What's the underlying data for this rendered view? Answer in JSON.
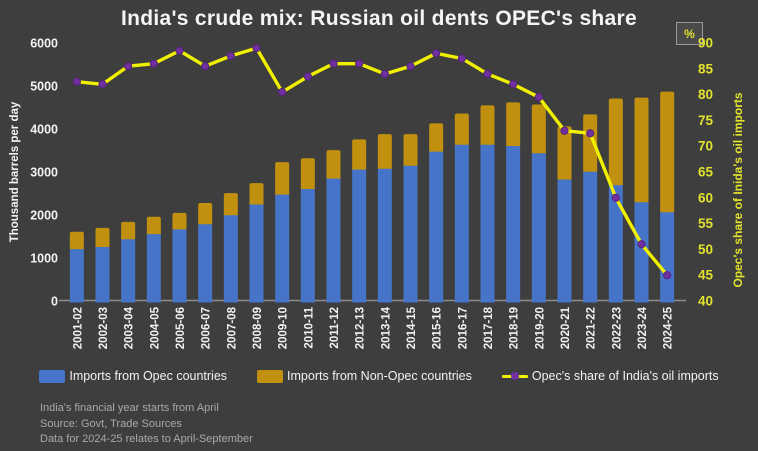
{
  "colors": {
    "background": "#3E3E3E",
    "axis_text": "#F2F2F2",
    "right_axis_text": "#E2E22E",
    "axis_line": "#8C8C8C",
    "footnote_text": "#A9A9A9",
    "opec_bar": "#4574C8",
    "non_opec_bar": "#C0900E",
    "share_line": "#F0F000",
    "share_marker": "#7030A0"
  },
  "footnotes": {
    "line1": "India's financial year starts from April",
    "line2": "Source: Govt, Trade Sources",
    "line3": "Data for 2024-25 relates to April-September"
  },
  "chart_data": {
    "type": "combo",
    "title": "India's crude mix: Russian oil dents OPEC's share",
    "ylabel_left": "Thousand barrels per day",
    "ylabel_right": "Opec's share of Inida's oil imports",
    "right_unit": "%",
    "xlabel": "",
    "left_ylim": [
      0,
      6000
    ],
    "left_tick_step": 1000,
    "right_ylim": [
      40,
      90
    ],
    "right_tick_step": 5,
    "grid": false,
    "legend_position": "bottom",
    "categories": [
      "2001-02",
      "2002-03",
      "2003-04",
      "2004-05",
      "2005-06",
      "2006-07",
      "2007-08",
      "2008-09",
      "2009-10",
      "2010-11",
      "2011-12",
      "2012-13",
      "2013-14",
      "2014-15",
      "2015-16",
      "2016-17",
      "2017-18",
      "2018-19",
      "2019-20",
      "2020-21",
      "2021-22",
      "2022-23",
      "2023-24",
      "2024-25"
    ],
    "series": [
      {
        "name": "Imports from Opec countries",
        "type": "bar",
        "stack": "imports",
        "axis": "left",
        "color": "#4574C8",
        "values": [
          1240,
          1290,
          1470,
          1590,
          1700,
          1820,
          2030,
          2280,
          2510,
          2640,
          2880,
          3090,
          3110,
          3180,
          3510,
          3670,
          3670,
          3640,
          3470,
          2860,
          3040,
          2730,
          2330,
          2100
        ]
      },
      {
        "name": "Imports from Non-Opec countries",
        "type": "bar",
        "stack": "imports",
        "axis": "left",
        "color": "#C0900E",
        "values": [
          370,
          410,
          370,
          370,
          350,
          460,
          480,
          460,
          720,
          680,
          630,
          670,
          770,
          700,
          620,
          690,
          880,
          980,
          1100,
          1200,
          1300,
          1980,
          2400,
          2770
        ]
      },
      {
        "name": "Opec's share of India's oil imports",
        "type": "line",
        "axis": "right",
        "color": "#F0F000",
        "marker_color": "#7030A0",
        "values": [
          82.5,
          82,
          85.5,
          86,
          88.5,
          85.5,
          87.5,
          89,
          80.5,
          83.5,
          86,
          86,
          84,
          85.5,
          88,
          87,
          84,
          82,
          79.5,
          73,
          72.5,
          60,
          51,
          45
        ]
      }
    ]
  }
}
